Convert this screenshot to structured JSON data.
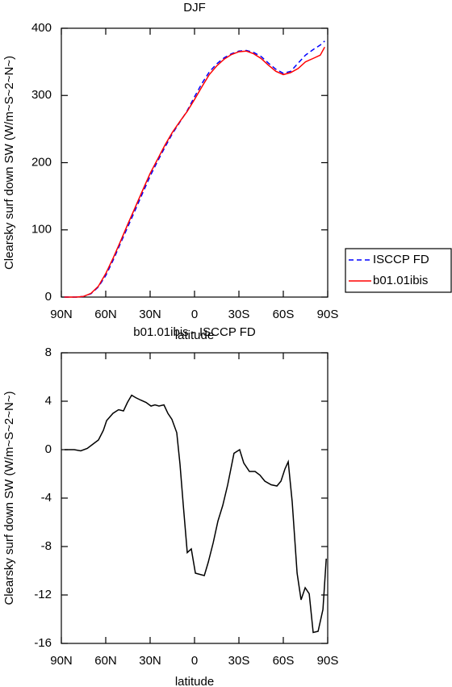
{
  "chart_data": [
    {
      "type": "line",
      "title": "DJF",
      "y_label": "Clearsky surf down SW (W/m~S~2~N~)",
      "x_label": "latitude",
      "xlim": [
        90,
        -90
      ],
      "xticks": [
        {
          "value": 90,
          "label": "90N"
        },
        {
          "value": 60,
          "label": "60N"
        },
        {
          "value": 30,
          "label": "30N"
        },
        0,
        {
          "value": -30,
          "label": "30S"
        },
        {
          "value": -60,
          "label": "60S"
        },
        {
          "value": -90,
          "label": "90S"
        }
      ],
      "ylim": [
        0,
        400
      ],
      "yticks": [
        0,
        100,
        200,
        300,
        400
      ],
      "legend": "right",
      "x": [
        88,
        85,
        80,
        75,
        70,
        65,
        60,
        55,
        50,
        45,
        40,
        35,
        30,
        25,
        20,
        15,
        10,
        5,
        0,
        -5,
        -10,
        -15,
        -20,
        -25,
        -30,
        -35,
        -40,
        -45,
        -50,
        -55,
        -60,
        -65,
        -70,
        -75,
        -80,
        -85,
        -88
      ],
      "series": [
        {
          "name": "ISCCP FD",
          "color": "#0000ff",
          "linestyle": "dashed",
          "values": [
            0,
            0,
            0,
            1,
            5,
            15,
            32,
            55,
            80,
            105,
            130,
            155,
            180,
            202,
            223,
            243,
            260,
            277,
            298,
            318,
            335,
            347,
            356,
            362,
            366,
            367,
            364,
            358,
            348,
            339,
            333,
            336,
            348,
            360,
            368,
            375,
            381
          ]
        },
        {
          "name": "b01.01ibis",
          "color": "#ff0000",
          "linestyle": "solid",
          "values": [
            0,
            0,
            0,
            1,
            5.5,
            16,
            35,
            58,
            83,
            109,
            134,
            159,
            184,
            205,
            226,
            245,
            261,
            276,
            294,
            313,
            331,
            344,
            354,
            361,
            365,
            366,
            362,
            355,
            345,
            336,
            331,
            334,
            340,
            350,
            355,
            360,
            372
          ]
        }
      ]
    },
    {
      "type": "line",
      "title": "b01.01ibis - ISCCP FD",
      "y_label": "Clearsky surf down SW (W/m~S~2~N~)",
      "x_label": "latitude",
      "xlim": [
        90,
        -90
      ],
      "xticks": [
        {
          "value": 90,
          "label": "90N"
        },
        {
          "value": 60,
          "label": "60N"
        },
        {
          "value": 30,
          "label": "30N"
        },
        0,
        {
          "value": -30,
          "label": "30S"
        },
        {
          "value": -60,
          "label": "60S"
        },
        {
          "value": -90,
          "label": "90S"
        }
      ],
      "ylim": [
        -16,
        8
      ],
      "yticks": [
        -16,
        -12,
        -8,
        -4,
        0,
        4,
        8
      ],
      "x": [
        87.8,
        81.3,
        76.9,
        72.5,
        68.2,
        64.9,
        61.6,
        59.4,
        55.1,
        51.3,
        48.0,
        45.3,
        42.5,
        39.8,
        36.5,
        32.7,
        29.4,
        26.7,
        24.0,
        20.7,
        18.0,
        15.3,
        12.0,
        9.8,
        7.6,
        4.9,
        2.2,
        -0.6,
        -6.6,
        -9.3,
        -12.6,
        -15.8,
        -19.1,
        -22.4,
        -26.7,
        -30.5,
        -33.3,
        -37.1,
        -40.9,
        -44.2,
        -47.5,
        -51.8,
        -55.7,
        -58.4,
        -61.1,
        -63.3,
        -66.0,
        -69.3,
        -72.0,
        -74.8,
        -77.5,
        -80.2,
        -83.5,
        -86.8,
        -89.0
      ],
      "color": "#000000",
      "values": [
        0,
        0,
        -0.1,
        0.1,
        0.5,
        0.8,
        1.6,
        2.4,
        3.0,
        3.3,
        3.2,
        3.9,
        4.5,
        4.3,
        4.1,
        3.9,
        3.6,
        3.7,
        3.6,
        3.7,
        3.0,
        2.5,
        1.4,
        -1.2,
        -4.6,
        -8.5,
        -8.2,
        -10.2,
        -10.4,
        -9.3,
        -7.7,
        -5.9,
        -4.6,
        -2.9,
        -0.3,
        0,
        -1.1,
        -1.8,
        -1.8,
        -2.1,
        -2.6,
        -2.9,
        -3.0,
        -2.6,
        -1.6,
        -1.0,
        -4.3,
        -10.2,
        -12.4,
        -11.4,
        -11.9,
        -15.1,
        -15.0,
        -13.2,
        -9.0
      ]
    }
  ]
}
